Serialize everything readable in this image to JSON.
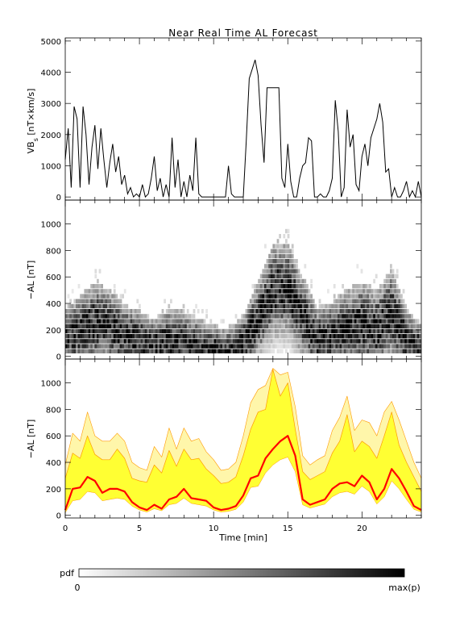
{
  "figure": {
    "title": "Near Real Time AL Forecast",
    "background": "#ffffff"
  },
  "chart_data": [
    {
      "type": "line",
      "panel": "top",
      "ylabel": "VBs [nT×km/s]",
      "ylabel_main": "VB",
      "ylabel_sub": "s",
      "ylabel_rest": " [nT×km/s]",
      "xlim": [
        0,
        24
      ],
      "ylim": [
        -100,
        5100
      ],
      "yticks": [
        0,
        1000,
        2000,
        3000,
        4000,
        5000
      ],
      "xticks": [
        0,
        5,
        10,
        15,
        20
      ],
      "color": "#000000",
      "x": [
        0,
        0.2,
        0.4,
        0.6,
        0.8,
        1.0,
        1.2,
        1.4,
        1.6,
        1.8,
        2.0,
        2.2,
        2.4,
        2.6,
        2.8,
        3.0,
        3.2,
        3.4,
        3.6,
        3.8,
        4.0,
        4.2,
        4.4,
        4.6,
        4.8,
        5.0,
        5.2,
        5.4,
        5.6,
        5.8,
        6.0,
        6.2,
        6.4,
        6.6,
        6.8,
        7.0,
        7.2,
        7.4,
        7.6,
        7.8,
        8.0,
        8.2,
        8.4,
        8.6,
        8.8,
        9.0,
        9.2,
        9.4,
        9.6,
        9.8,
        10.0,
        10.2,
        10.4,
        10.6,
        10.8,
        11.0,
        11.2,
        11.4,
        11.6,
        11.8,
        12.0,
        12.2,
        12.4,
        12.6,
        12.8,
        13.0,
        13.2,
        13.4,
        13.6,
        13.8,
        14.0,
        14.2,
        14.4,
        14.6,
        14.8,
        15.0,
        15.2,
        15.4,
        15.6,
        15.8,
        16.0,
        16.2,
        16.4,
        16.6,
        16.8,
        17.0,
        17.2,
        17.4,
        17.6,
        17.8,
        18.0,
        18.2,
        18.4,
        18.6,
        18.8,
        19.0,
        19.2,
        19.4,
        19.6,
        19.8,
        20.0,
        20.2,
        20.4,
        20.6,
        20.8,
        21.0,
        21.2,
        21.4,
        21.6,
        21.8,
        22.0,
        22.2,
        22.4,
        22.6,
        22.8,
        23.0,
        23.2,
        23.4,
        23.6,
        23.8,
        24.0
      ],
      "y": [
        1200,
        2200,
        300,
        2900,
        2500,
        300,
        2900,
        2000,
        400,
        1600,
        2300,
        900,
        2200,
        1200,
        300,
        1100,
        1700,
        800,
        1300,
        400,
        700,
        100,
        300,
        0,
        100,
        0,
        400,
        0,
        100,
        600,
        1300,
        200,
        600,
        0,
        400,
        0,
        1900,
        300,
        1200,
        0,
        500,
        0,
        700,
        200,
        1900,
        100,
        0,
        0,
        0,
        0,
        0,
        0,
        0,
        0,
        0,
        1000,
        100,
        0,
        0,
        0,
        0,
        1800,
        3800,
        4100,
        4400,
        3900,
        2300,
        1100,
        3500,
        3500,
        3500,
        3500,
        3500,
        600,
        300,
        1700,
        500,
        0,
        0,
        600,
        1000,
        1100,
        1900,
        1800,
        0,
        0,
        100,
        0,
        0,
        200,
        600,
        3100,
        2100,
        0,
        300,
        2800,
        1600,
        2000,
        400,
        200,
        1300,
        1700,
        1000,
        1900,
        2200,
        2500,
        3000,
        2400,
        800,
        900,
        0,
        300,
        0,
        0,
        200,
        500,
        0,
        200,
        0,
        500,
        0
      ]
    },
    {
      "type": "heatmap",
      "panel": "middle",
      "ylabel": "−AL [nT]",
      "xlim": [
        0,
        24
      ],
      "ylim": [
        -20,
        1180
      ],
      "yticks": [
        0,
        200,
        400,
        600,
        800,
        1000
      ],
      "xticks": [
        0,
        5,
        10,
        15,
        20
      ],
      "colormap": [
        "#ffffff",
        "#000000"
      ],
      "x": [
        0,
        1,
        2,
        3,
        4,
        5,
        6,
        7,
        8,
        9,
        10,
        11,
        12,
        13,
        14,
        15,
        16,
        17,
        18,
        19,
        20,
        21,
        22,
        23,
        24
      ],
      "mode_AL": [
        150,
        180,
        250,
        220,
        150,
        120,
        80,
        110,
        100,
        70,
        50,
        40,
        90,
        280,
        500,
        520,
        300,
        120,
        150,
        200,
        230,
        200,
        320,
        120,
        60
      ],
      "spread_AL": [
        200,
        250,
        280,
        260,
        220,
        200,
        180,
        230,
        220,
        200,
        170,
        150,
        200,
        260,
        320,
        320,
        280,
        230,
        240,
        280,
        300,
        280,
        300,
        220,
        160
      ]
    },
    {
      "type": "area",
      "panel": "bottom",
      "ylabel": "−AL [nT]",
      "xlabel": "Time [min]",
      "xlim": [
        0,
        24
      ],
      "ylim": [
        -20,
        1180
      ],
      "yticks": [
        0,
        200,
        400,
        600,
        800,
        1000
      ],
      "xticks": [
        0,
        5,
        10,
        15,
        20
      ],
      "colors": {
        "median": "#ff0000",
        "band": "#ffff33",
        "band_edge": "#ff9900",
        "outer": "#fff6aa"
      },
      "x": [
        0,
        0.5,
        1.0,
        1.5,
        2.0,
        2.5,
        3.0,
        3.5,
        4.0,
        4.5,
        5.0,
        5.5,
        6.0,
        6.5,
        7.0,
        7.5,
        8.0,
        8.5,
        9.0,
        9.5,
        10.0,
        10.5,
        11.0,
        11.5,
        12.0,
        12.5,
        13.0,
        13.5,
        14.0,
        14.5,
        15.0,
        15.5,
        16.0,
        16.5,
        17.0,
        17.5,
        18.0,
        18.5,
        19.0,
        19.5,
        20.0,
        20.5,
        21.0,
        21.5,
        22.0,
        22.5,
        23.0,
        23.5,
        24.0
      ],
      "median": [
        40,
        200,
        210,
        290,
        260,
        170,
        200,
        200,
        180,
        100,
        60,
        40,
        80,
        50,
        120,
        140,
        200,
        130,
        120,
        110,
        60,
        40,
        50,
        70,
        150,
        280,
        300,
        430,
        500,
        560,
        600,
        450,
        120,
        80,
        100,
        120,
        200,
        240,
        250,
        220,
        300,
        250,
        120,
        200,
        350,
        280,
        180,
        70,
        40
      ],
      "lower": [
        20,
        110,
        120,
        180,
        170,
        110,
        120,
        130,
        120,
        70,
        40,
        25,
        50,
        35,
        80,
        90,
        130,
        90,
        80,
        70,
        40,
        25,
        30,
        45,
        100,
        210,
        220,
        320,
        380,
        420,
        440,
        330,
        80,
        55,
        70,
        85,
        140,
        170,
        180,
        160,
        220,
        180,
        85,
        140,
        260,
        200,
        120,
        45,
        25
      ],
      "upper": [
        280,
        470,
        430,
        600,
        460,
        420,
        420,
        500,
        430,
        280,
        260,
        250,
        380,
        320,
        490,
        370,
        500,
        420,
        430,
        350,
        300,
        240,
        250,
        290,
        450,
        650,
        780,
        800,
        1100,
        900,
        1000,
        650,
        330,
        270,
        300,
        330,
        470,
        560,
        760,
        480,
        560,
        520,
        430,
        600,
        780,
        530,
        400,
        290,
        180
      ],
      "outer_upper": [
        380,
        620,
        560,
        780,
        600,
        560,
        560,
        620,
        560,
        400,
        360,
        340,
        520,
        440,
        660,
        500,
        660,
        560,
        580,
        480,
        420,
        340,
        350,
        400,
        600,
        850,
        950,
        980,
        1110,
        1060,
        1080,
        820,
        450,
        380,
        420,
        450,
        640,
        740,
        900,
        640,
        720,
        700,
        600,
        780,
        860,
        720,
        560,
        400,
        280
      ]
    }
  ],
  "colorbar": {
    "label": "pdf",
    "min_label": "0",
    "max_label": "max(p)",
    "colors": [
      "#ffffff",
      "#000000"
    ]
  }
}
